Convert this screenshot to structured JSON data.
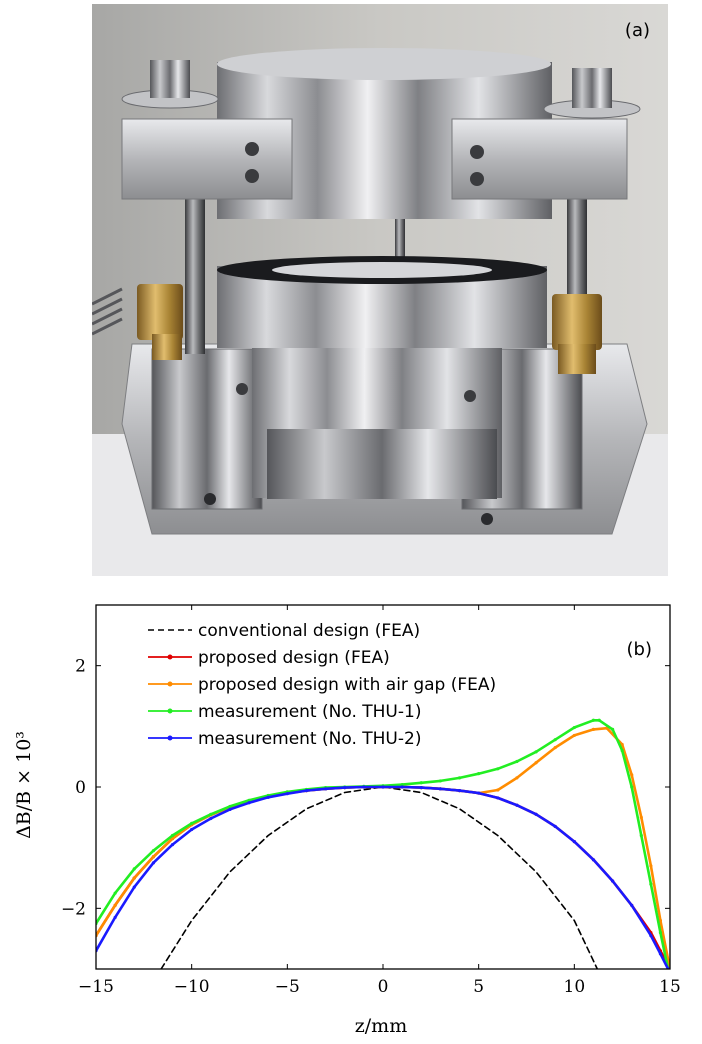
{
  "photo": {
    "panel_label": "(a)",
    "description_icon": "magnet-assembly-photo"
  },
  "chart_data": {
    "type": "line",
    "panel_label": "(b)",
    "xlabel": "z/mm",
    "ylabel": "ΔB/B × 10³",
    "xlim": [
      -15,
      15
    ],
    "ylim": [
      -3,
      3
    ],
    "xticks": [
      -15,
      -10,
      -5,
      0,
      5,
      10,
      15
    ],
    "yticks": [
      -2,
      0,
      2
    ],
    "xtick_labels": [
      "−15",
      "−10",
      "−5",
      "0",
      "5",
      "10",
      "15"
    ],
    "ytick_labels": [
      "−2",
      "0",
      "2"
    ],
    "grid": false,
    "legend_position": "top-left",
    "series": [
      {
        "name": "conventional design (FEA)",
        "color": "#000000",
        "style": "dashed",
        "x": [
          -11.6,
          -10,
          -8,
          -6,
          -4,
          -2,
          0,
          2,
          4,
          6,
          8,
          10,
          11.2
        ],
        "y": [
          -3.0,
          -2.2,
          -1.4,
          -0.8,
          -0.36,
          -0.09,
          0,
          -0.09,
          -0.36,
          -0.8,
          -1.4,
          -2.2,
          -3.0
        ]
      },
      {
        "name": "proposed design (FEA)",
        "color": "#e00000",
        "style": "solid-marker",
        "x": [
          -15,
          -14,
          -13,
          -12,
          -11,
          -10,
          -9,
          -8,
          -7,
          -6,
          -5,
          -4,
          -3,
          -2,
          -1,
          0,
          1,
          2,
          3,
          4,
          5,
          6,
          7,
          8,
          9,
          10,
          11,
          12,
          13,
          14,
          14.5,
          15
        ],
        "y": [
          -2.45,
          -1.95,
          -1.5,
          -1.15,
          -0.85,
          -0.62,
          -0.46,
          -0.33,
          -0.23,
          -0.15,
          -0.1,
          -0.06,
          -0.03,
          -0.01,
          0,
          0,
          0,
          -0.01,
          -0.03,
          -0.06,
          -0.1,
          -0.18,
          -0.3,
          -0.45,
          -0.65,
          -0.9,
          -1.2,
          -1.55,
          -1.95,
          -2.4,
          -2.7,
          -3.0
        ]
      },
      {
        "name": "proposed design with air gap (FEA)",
        "color": "#ff8c00",
        "style": "solid-marker",
        "x": [
          -15,
          -14,
          -13,
          -12,
          -11,
          -10,
          -9,
          -8,
          -7,
          -6,
          -5,
          -4,
          -3,
          -2,
          -1,
          0,
          1,
          2,
          3,
          4,
          5,
          6,
          7,
          8,
          9,
          10,
          11,
          11.7,
          12.5,
          13,
          13.5,
          14,
          14.5,
          15
        ],
        "y": [
          -2.45,
          -1.95,
          -1.5,
          -1.15,
          -0.85,
          -0.62,
          -0.46,
          -0.33,
          -0.23,
          -0.15,
          -0.1,
          -0.06,
          -0.03,
          -0.01,
          0,
          0,
          0,
          -0.01,
          -0.03,
          -0.06,
          -0.1,
          -0.05,
          0.15,
          0.4,
          0.65,
          0.85,
          0.95,
          0.97,
          0.7,
          0.2,
          -0.5,
          -1.3,
          -2.2,
          -3.0
        ]
      },
      {
        "name": "measurement (No. THU-1)",
        "color": "#22ee22",
        "style": "solid-marker",
        "x": [
          -15,
          -14,
          -13,
          -12,
          -11,
          -10,
          -9,
          -8,
          -7,
          -6,
          -5,
          -4,
          -3,
          -2,
          -1,
          0,
          1,
          2,
          3,
          4,
          5,
          6,
          7,
          8,
          9,
          10,
          11,
          11.3,
          12,
          12.5,
          13,
          13.5,
          14,
          14.5,
          14.9
        ],
        "y": [
          -2.25,
          -1.75,
          -1.35,
          -1.05,
          -0.8,
          -0.6,
          -0.45,
          -0.32,
          -0.22,
          -0.14,
          -0.08,
          -0.04,
          -0.01,
          0,
          0.01,
          0.02,
          0.04,
          0.07,
          0.1,
          0.15,
          0.22,
          0.3,
          0.42,
          0.58,
          0.78,
          0.98,
          1.1,
          1.1,
          0.95,
          0.6,
          0.0,
          -0.8,
          -1.6,
          -2.4,
          -3.0
        ]
      },
      {
        "name": "measurement (No. THU-2)",
        "color": "#1a1aff",
        "style": "solid-marker",
        "x": [
          -15,
          -14,
          -13,
          -12,
          -11,
          -10,
          -9,
          -8,
          -7,
          -6,
          -5,
          -4,
          -3,
          -2,
          -1,
          0,
          1,
          2,
          3,
          4,
          5,
          6,
          7,
          8,
          9,
          10,
          11,
          12,
          13,
          14,
          14.5,
          14.9
        ],
        "y": [
          -2.7,
          -2.15,
          -1.65,
          -1.25,
          -0.95,
          -0.7,
          -0.52,
          -0.37,
          -0.26,
          -0.17,
          -0.11,
          -0.06,
          -0.03,
          -0.01,
          0,
          0,
          0,
          -0.01,
          -0.03,
          -0.06,
          -0.1,
          -0.18,
          -0.3,
          -0.45,
          -0.65,
          -0.9,
          -1.2,
          -1.55,
          -1.95,
          -2.45,
          -2.75,
          -3.0
        ]
      }
    ]
  }
}
